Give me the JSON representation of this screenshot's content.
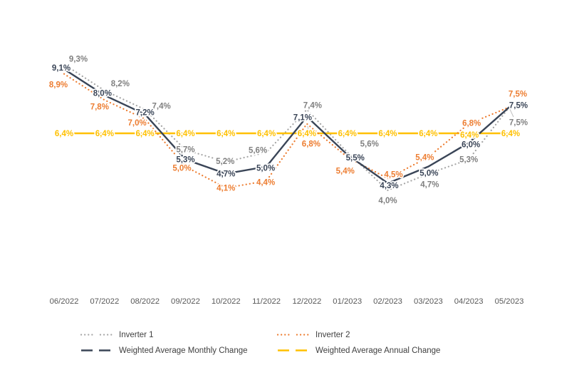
{
  "chart_data": {
    "type": "line",
    "title": "",
    "categories": [
      "06/2022",
      "07/2022",
      "08/2022",
      "09/2022",
      "10/2022",
      "11/2022",
      "12/2022",
      "01/2023",
      "02/2023",
      "03/2023",
      "04/2023",
      "05/2023"
    ],
    "series": [
      {
        "name": "Inverter 1",
        "color": "#A6A6A6",
        "label_color": "#808080",
        "line_style": "dotted",
        "values": [
          9.3,
          8.2,
          7.4,
          5.7,
          5.2,
          5.6,
          7.4,
          5.6,
          4.0,
          4.7,
          5.3,
          7.5
        ]
      },
      {
        "name": "Inverter 2",
        "color": "#ED7D31",
        "label_color": "#ED7D31",
        "line_style": "dotted",
        "values": [
          8.9,
          7.8,
          7.0,
          5.0,
          4.1,
          4.4,
          6.8,
          5.4,
          4.5,
          5.4,
          6.8,
          7.5
        ]
      },
      {
        "name": "Weighted Average Monthly Change",
        "color": "#3A4557",
        "label_color": "#3A4557",
        "line_style": "solid",
        "values": [
          9.1,
          8.0,
          7.2,
          5.3,
          4.7,
          5.0,
          7.1,
          5.5,
          4.3,
          5.0,
          6.0,
          7.5
        ]
      },
      {
        "name": "Weighted Average Annual Change",
        "color": "#FFC000",
        "label_color": "#FFC000",
        "line_style": "solid",
        "values": [
          6.4,
          6.4,
          6.4,
          6.4,
          6.4,
          6.4,
          6.4,
          6.4,
          6.4,
          6.4,
          6.4,
          6.4
        ]
      }
    ],
    "data_labels_visible": true,
    "value_suffix": "%",
    "decimal_separator": ",",
    "decimals": 1,
    "ylim": [
      3.2,
      10.2
    ],
    "grid": false,
    "axes_visible": false,
    "legend_position": "bottom",
    "axis_label_color": "#595959",
    "legend_text_color": "#404040",
    "background_color": "#FFFFFF",
    "leader_line_color": "#BFBFBF"
  },
  "legend": {
    "items": [
      {
        "label": "Inverter 1",
        "series": 0,
        "marker": "dotted"
      },
      {
        "label": "Inverter 2",
        "series": 1,
        "marker": "dotted"
      },
      {
        "label": "Weighted Average Monthly Change",
        "series": 2,
        "marker": "dashed"
      },
      {
        "label": "Weighted Average Annual Change",
        "series": 3,
        "marker": "dashed"
      }
    ]
  }
}
